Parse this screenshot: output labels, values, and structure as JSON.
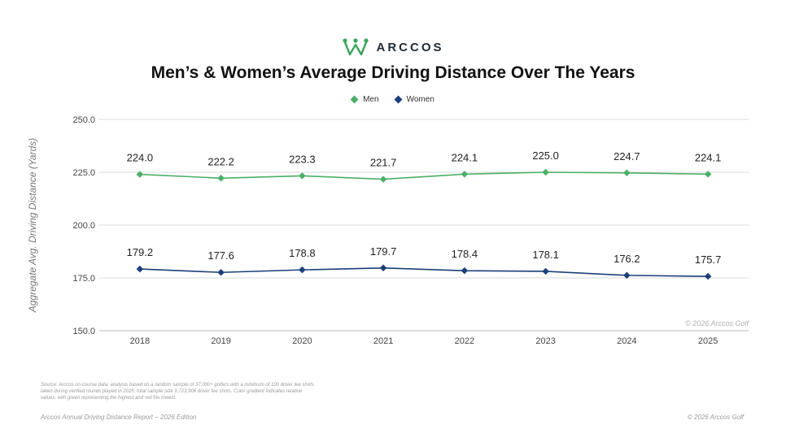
{
  "brand": {
    "name": "ARCCOS",
    "logo_icon": "arccos-crown-icon",
    "color": "#3aa55d"
  },
  "footer": {
    "source_note": "Source: Arccos on-course data; analysis based on a random sample of 37,000+ golfers with a minimum of 100 driver tee shots taken during verified rounds played in 2025; total sample size 9,723,906 driver tee shots. Color gradient indicates relative values, with green representing the highest and red the lowest.",
    "edition": "Arccos Annual Driving Distance Report – 2026 Edition",
    "copyright": "© 2026 Arccos Golf"
  },
  "chart_data": {
    "type": "line",
    "title": "Men’s & Women’s Average Driving Distance Over The Years",
    "xlabel": "",
    "ylabel": "Aggregate Avg. Driving Distance (Yards)",
    "categories": [
      "2018",
      "2019",
      "2020",
      "2021",
      "2022",
      "2023",
      "2024",
      "2025"
    ],
    "ylim": [
      150,
      250
    ],
    "yticks": [
      "150.0",
      "175.0",
      "200.0",
      "225.0",
      "250.0"
    ],
    "grid": true,
    "legend_position": "top-center",
    "watermark": "© 2026 Arccos Golf",
    "series": [
      {
        "name": "Men",
        "color": "#4caf66",
        "values": [
          224.0,
          222.2,
          223.3,
          221.7,
          224.1,
          225.0,
          224.7,
          224.1
        ],
        "labels": [
          "224.0",
          "222.2",
          "223.3",
          "221.7",
          "224.1",
          "225.0",
          "224.7",
          "224.1"
        ]
      },
      {
        "name": "Women",
        "color": "#1a3f7a",
        "values": [
          179.2,
          177.6,
          178.8,
          179.7,
          178.4,
          178.1,
          176.2,
          175.7
        ],
        "labels": [
          "179.2",
          "177.6",
          "178.8",
          "179.7",
          "178.4",
          "178.1",
          "176.2",
          "175.7"
        ]
      }
    ]
  }
}
